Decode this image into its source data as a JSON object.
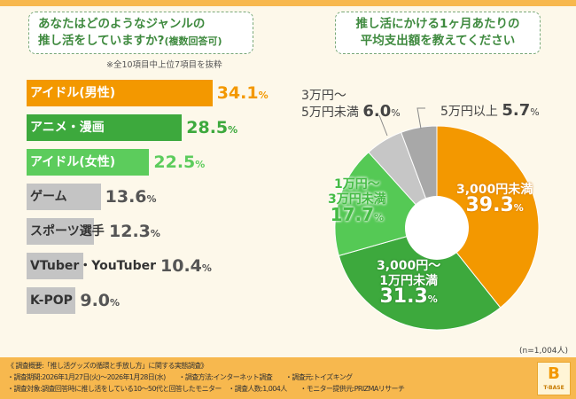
{
  "left": {
    "question": "あなたはどのようなジャンルの",
    "question2": "推し活をしていますか?",
    "qualifier": "(複数回答可)",
    "note": "※全10項目中上位7項目を抜粋"
  },
  "right": {
    "question": "推し活にかける1ヶ月あたりの",
    "question2": "平均支出額を教えてください",
    "n": "(n=1,004人)"
  },
  "chart_data": [
    {
      "type": "bar",
      "orientation": "horizontal",
      "categories": [
        "アイドル(男性)",
        "アニメ・漫画",
        "アイドル(女性)",
        "ゲーム",
        "スポーツ選手",
        "VTuber・YouTuber",
        "K-POP"
      ],
      "values": [
        34.1,
        28.5,
        22.5,
        13.6,
        12.3,
        10.4,
        9.0
      ],
      "value_labels": [
        "34.1",
        "28.5",
        "22.5",
        "13.6",
        "12.3",
        "10.4",
        "9.0"
      ],
      "unit": "%",
      "colors": [
        "#f39800",
        "#3da93d",
        "#5ccc5c",
        "#c4c4c4",
        "#c4c4c4",
        "#c4c4c4",
        "#c4c4c4"
      ]
    },
    {
      "type": "pie",
      "donut": true,
      "slices": [
        {
          "label": "3,000円未満",
          "value": 39.3,
          "value_label": "39.3",
          "color": "#f39800"
        },
        {
          "label": "3,000円〜 1万円未満",
          "value": 31.3,
          "value_label": "31.3",
          "color": "#3da93d"
        },
        {
          "label": "1万円〜 3万円未満",
          "value": 17.7,
          "value_label": "17.7",
          "color": "#55c955"
        },
        {
          "label": "3万円〜 5万円未満",
          "value": 6.0,
          "value_label": "6.0",
          "color": "#c6c6c6"
        },
        {
          "label": "5万円以上",
          "value": 5.7,
          "value_label": "5.7",
          "color": "#a8a8a8"
        }
      ],
      "unit": "%"
    }
  ],
  "pie_labels": {
    "s0a": "3,000円未満",
    "s1a": "3,000円〜",
    "s1b": "1万円未満",
    "s2a": "1万円〜",
    "s2b": "3万円未満",
    "s3a": "3万円〜",
    "s3b": "5万円未満",
    "s4a": "5万円以上"
  },
  "footer": {
    "line1": "《 調査概要:「推し活グッズの循環と手放し方」に関する実態調査》",
    "line2": "・調査期間:2026年1月27日(火)〜2026年1月28日(水)　　・調査方法:インターネット調査　　・調査元:トイズキング",
    "line3": "・調査対象:調査回答時に推し活をしている10〜50代と回答したモニター　・調査人数:1,004人　　・モニター提供元:PRIZMAリサーチ",
    "logo": "T-BASE"
  }
}
